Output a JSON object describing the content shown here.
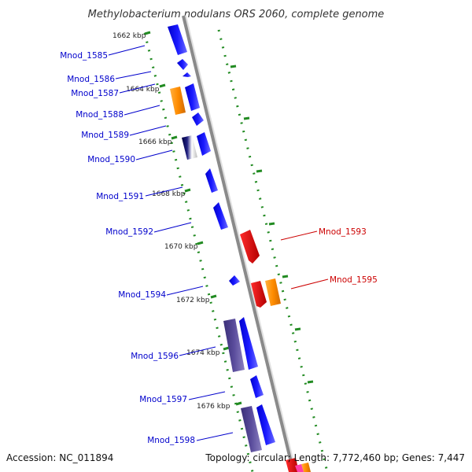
{
  "title": "Methylobacterium nodulans ORS 2060, complete genome",
  "accession": "Accession: NC_011894",
  "topology": "Topology: circular; Length: 7,772,460 bp; Genes: 7,447",
  "ticks": [
    "1662 kbp",
    "1664 kbp",
    "1666 kbp",
    "1668 kbp",
    "1670 kbp",
    "1672 kbp",
    "1674 kbp",
    "1676 kbp"
  ],
  "genes": [
    {
      "label": "Mnod_1585",
      "strand": "left"
    },
    {
      "label": "Mnod_1586",
      "strand": "left"
    },
    {
      "label": "Mnod_1587",
      "strand": "left"
    },
    {
      "label": "Mnod_1588",
      "strand": "left"
    },
    {
      "label": "Mnod_1589",
      "strand": "left"
    },
    {
      "label": "Mnod_1590",
      "strand": "left"
    },
    {
      "label": "Mnod_1591",
      "strand": "left"
    },
    {
      "label": "Mnod_1592",
      "strand": "left"
    },
    {
      "label": "Mnod_1593",
      "strand": "right"
    },
    {
      "label": "Mnod_1594",
      "strand": "left"
    },
    {
      "label": "Mnod_1595",
      "strand": "right"
    },
    {
      "label": "Mnod_1596",
      "strand": "left"
    },
    {
      "label": "Mnod_1597",
      "strand": "left"
    },
    {
      "label": "Mnod_1598",
      "strand": "left"
    }
  ],
  "colors": {
    "forward_gene": "#0000ee",
    "reverse_gene": "#ee0000",
    "orange_feature": "#ff8c00",
    "purple_feature": "#4b3f8c",
    "backbone": "#888888",
    "ruler": "#228b22",
    "left_label": "#0000cc",
    "right_label": "#cc0000"
  }
}
